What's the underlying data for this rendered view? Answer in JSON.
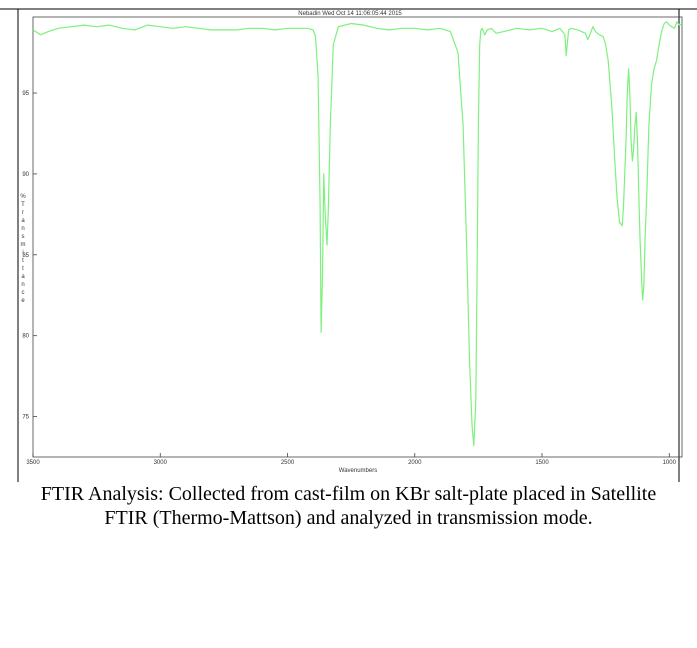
{
  "chart_data": {
    "type": "line",
    "title": "Nebadin  Wed Oct 14 11:06:05:44 2015",
    "xlabel": "Wavenumbers",
    "ylabel": "% Transmittance",
    "xlim": [
      3500,
      950
    ],
    "ylim": [
      72.5,
      99.7
    ],
    "x_ticks": [
      3500,
      3000,
      2500,
      2000,
      1500,
      1000
    ],
    "y_ticks": [
      75,
      80,
      85,
      90,
      95
    ],
    "grid": false,
    "line_color": "#7ef07e",
    "series": [
      {
        "x": [
          3500,
          3470,
          3440,
          3400,
          3350,
          3300,
          3250,
          3200,
          3150,
          3100,
          3050,
          3000,
          2950,
          2900,
          2850,
          2800,
          2750,
          2700,
          2650,
          2600,
          2550,
          2500,
          2450,
          2420,
          2400,
          2390,
          2380,
          2372,
          2368,
          2362,
          2358,
          2352,
          2345,
          2340,
          2332,
          2320,
          2300,
          2250,
          2200,
          2150,
          2100,
          2050,
          2000,
          1950,
          1900,
          1860,
          1830,
          1810,
          1795,
          1785,
          1775,
          1768,
          1760,
          1755,
          1750,
          1745,
          1740,
          1735,
          1725,
          1715,
          1700,
          1680,
          1650,
          1600,
          1550,
          1500,
          1460,
          1430,
          1410,
          1405,
          1400,
          1395,
          1385,
          1360,
          1330,
          1320,
          1310,
          1300,
          1290,
          1275,
          1260,
          1250,
          1240,
          1225,
          1215,
          1205,
          1195,
          1185,
          1180,
          1170,
          1165,
          1160,
          1155,
          1150,
          1145,
          1140,
          1135,
          1130,
          1125,
          1120,
          1115,
          1110,
          1105,
          1100,
          1095,
          1088,
          1080,
          1070,
          1060,
          1050,
          1040,
          1030,
          1020,
          1010,
          1000,
          990,
          980,
          970,
          960,
          950
        ],
        "y": [
          98.9,
          98.6,
          98.8,
          99.0,
          99.1,
          99.2,
          99.1,
          99.2,
          99.0,
          98.9,
          99.2,
          99.1,
          99.0,
          99.1,
          99.0,
          98.9,
          98.9,
          98.9,
          99.0,
          99.0,
          98.9,
          99.0,
          99.0,
          99.0,
          98.9,
          98.5,
          96.0,
          88.0,
          80.2,
          84.0,
          90.0,
          87.5,
          85.6,
          87.5,
          93.0,
          98.0,
          99.1,
          99.3,
          99.2,
          99.0,
          98.9,
          99.0,
          99.0,
          98.9,
          99.0,
          98.8,
          97.5,
          93.0,
          85.0,
          78.5,
          74.5,
          73.2,
          76.0,
          84.0,
          93.0,
          98.0,
          98.9,
          99.0,
          98.6,
          98.9,
          99.0,
          98.7,
          98.8,
          99.0,
          98.9,
          99.0,
          98.8,
          99.0,
          98.6,
          97.3,
          98.2,
          98.9,
          99.0,
          98.9,
          98.7,
          98.3,
          98.7,
          99.1,
          98.8,
          98.6,
          98.5,
          98.0,
          97.0,
          94.0,
          91.0,
          88.5,
          87.0,
          86.8,
          88.0,
          92.0,
          95.0,
          96.5,
          95.0,
          92.0,
          90.8,
          91.5,
          93.0,
          93.8,
          92.0,
          89.0,
          86.0,
          84.0,
          82.2,
          83.0,
          86.0,
          89.0,
          93.0,
          95.5,
          96.5,
          97.0,
          98.0,
          98.8,
          99.3,
          99.4,
          99.2,
          99.1,
          99.0,
          99.4,
          99.2,
          99.3
        ]
      }
    ]
  },
  "caption": "FTIR Analysis: Collected from cast-film on KBr salt-plate placed in Satellite FTIR (Thermo-Mattson) and analyzed in transmission mode."
}
